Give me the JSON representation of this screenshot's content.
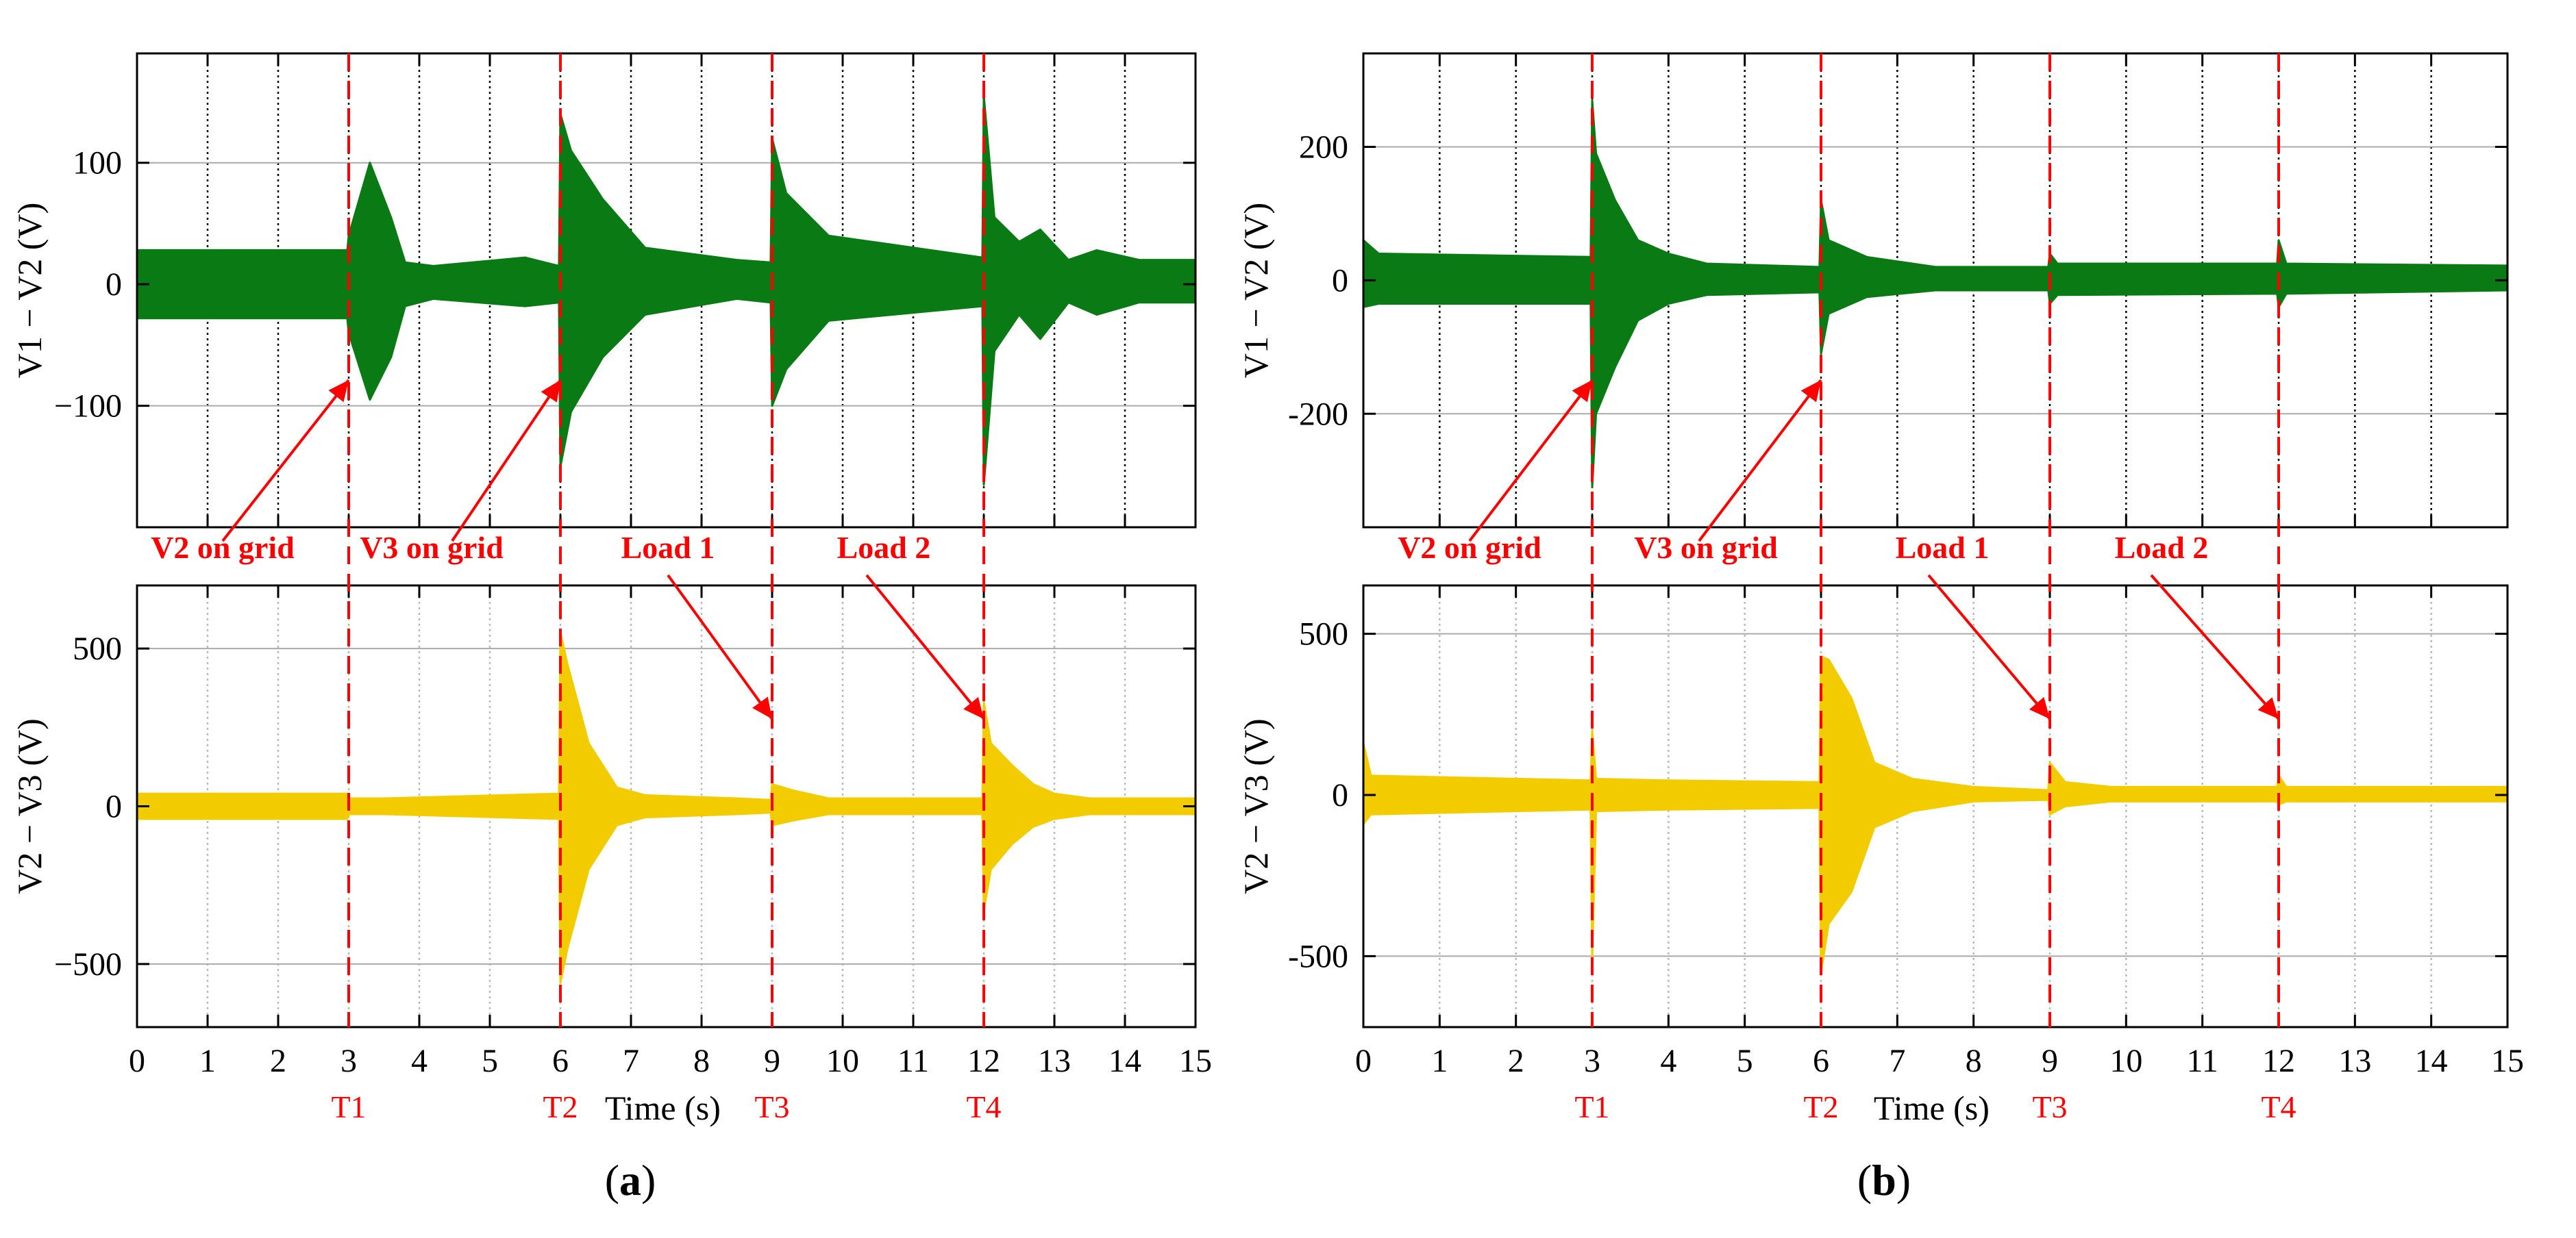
{
  "chart_data": [
    {
      "panel": "(a)",
      "type": "line",
      "x": [
        0,
        1,
        2,
        3,
        4,
        5,
        6,
        7,
        8,
        9,
        10,
        11,
        12,
        13,
        14,
        15
      ],
      "xlabel": "Time (s)",
      "xlim": [
        0,
        15
      ],
      "events": [
        {
          "name": "T1",
          "t": 3
        },
        {
          "name": "T2",
          "t": 6
        },
        {
          "name": "T3",
          "t": 9
        },
        {
          "name": "T4",
          "t": 12
        }
      ],
      "annotations": [
        {
          "text": "V2 on grid",
          "t": 3,
          "plot": "top"
        },
        {
          "text": "V3 on grid",
          "t": 6,
          "plot": "top"
        },
        {
          "text": "Load 1",
          "t": 9,
          "plot": "bottom"
        },
        {
          "text": "Load 2",
          "t": 12,
          "plot": "bottom"
        }
      ],
      "plots": [
        {
          "ylabel": "V1 − V2 (V)",
          "ylim": [
            -200,
            190
          ],
          "yticks": [
            100,
            0,
            -100
          ],
          "ytick_labels": [
            "100",
            "0",
            "−100"
          ],
          "color": "#0a7a14",
          "series": [
            {
              "envelope_time": [
                0,
                2.98,
                3.0,
                3.3,
                3.6,
                3.8,
                4.2,
                5.5,
                5.98,
                6.0,
                6.15,
                6.6,
                7.2,
                8.5,
                8.98,
                9.0,
                9.2,
                9.8,
                11.98,
                12.0,
                12.15,
                12.5,
                12.8,
                13.2,
                13.6,
                14.2,
                15.0
              ],
              "envelope_pos": [
                28,
                28,
                40,
                100,
                55,
                18,
                15,
                22,
                15,
                140,
                110,
                70,
                30,
                20,
                18,
                120,
                75,
                40,
                22,
                155,
                55,
                35,
                45,
                20,
                28,
                20,
                20
              ],
              "envelope_neg": [
                -28,
                -28,
                -40,
                -95,
                -60,
                -18,
                -12,
                -18,
                -15,
                -150,
                -105,
                -60,
                -25,
                -12,
                -15,
                -100,
                -70,
                -30,
                -18,
                -165,
                -55,
                -25,
                -45,
                -15,
                -25,
                -15,
                -15
              ]
            }
          ]
        },
        {
          "ylabel": "V2 − V3 (V)",
          "ylim": [
            -700,
            700
          ],
          "yticks": [
            500,
            0,
            -500
          ],
          "ytick_labels": [
            "500",
            "0",
            "−500"
          ],
          "color": "#f3cc00",
          "series": [
            {
              "envelope_time": [
                0,
                2.98,
                3.0,
                3.5,
                5.98,
                6.0,
                6.1,
                6.4,
                6.8,
                7.2,
                8.5,
                8.98,
                9.0,
                9.3,
                9.8,
                11.98,
                12.0,
                12.1,
                12.4,
                12.7,
                13.0,
                13.5,
                15.0
              ],
              "envelope_pos": [
                40,
                40,
                25,
                25,
                40,
                550,
                450,
                200,
                60,
                35,
                25,
                20,
                70,
                50,
                25,
                25,
                330,
                200,
                130,
                70,
                40,
                25,
                25
              ],
              "envelope_neg": [
                -40,
                -40,
                -25,
                -25,
                -40,
                -560,
                -450,
                -200,
                -60,
                -35,
                -25,
                -20,
                -60,
                -45,
                -25,
                -25,
                -330,
                -200,
                -120,
                -65,
                -40,
                -25,
                -25
              ]
            }
          ]
        }
      ]
    },
    {
      "panel": "(b)",
      "type": "line",
      "x": [
        0,
        1,
        2,
        3,
        4,
        5,
        6,
        7,
        8,
        9,
        10,
        11,
        12,
        13,
        14,
        15
      ],
      "xlabel": "Time (s)",
      "xlim": [
        0,
        15
      ],
      "events": [
        {
          "name": "T1",
          "t": 3
        },
        {
          "name": "T2",
          "t": 6
        },
        {
          "name": "T3",
          "t": 9
        },
        {
          "name": "T4",
          "t": 12
        }
      ],
      "annotations": [
        {
          "text": "V2 on grid",
          "t": 3,
          "plot": "top"
        },
        {
          "text": "V3 on grid",
          "t": 6,
          "plot": "top"
        },
        {
          "text": "Load 1",
          "t": 9,
          "plot": "bottom"
        },
        {
          "text": "Load 2",
          "t": 12,
          "plot": "bottom"
        }
      ],
      "plots": [
        {
          "ylabel": "V1 − V2 (V)",
          "ylim": [
            -370,
            340
          ],
          "yticks": [
            200,
            0,
            -200
          ],
          "ytick_labels": [
            "200",
            "0",
            "-200"
          ],
          "color": "#0a7a14",
          "series": [
            {
              "envelope_time": [
                0,
                0.2,
                2.98,
                3.0,
                3.05,
                3.3,
                3.6,
                4.0,
                4.5,
                5.98,
                6.0,
                6.1,
                6.6,
                7.5,
                8.98,
                9.0,
                9.1,
                11.98,
                12.0,
                12.1,
                15.0
              ],
              "envelope_pos": [
                60,
                40,
                35,
                270,
                190,
                120,
                60,
                40,
                25,
                20,
                120,
                60,
                35,
                20,
                20,
                40,
                25,
                25,
                60,
                25,
                22
              ],
              "envelope_neg": [
                -40,
                -35,
                -35,
                -310,
                -200,
                -130,
                -60,
                -35,
                -22,
                -18,
                -110,
                -50,
                -25,
                -15,
                -15,
                -35,
                -22,
                -20,
                -40,
                -20,
                -15
              ]
            }
          ]
        },
        {
          "ylabel": "V2 − V3 (V)",
          "ylim": [
            -720,
            650
          ],
          "yticks": [
            500,
            0,
            -500
          ],
          "ytick_labels": [
            "500",
            "0",
            "-500"
          ],
          "color": "#f3cc00",
          "series": [
            {
              "envelope_time": [
                0,
                0.1,
                2.98,
                3.0,
                3.05,
                4.0,
                5.98,
                6.0,
                6.1,
                6.4,
                6.7,
                7.2,
                8.0,
                8.98,
                9.0,
                9.2,
                9.8,
                11.98,
                12.0,
                12.1,
                15.0
              ],
              "envelope_pos": [
                160,
                60,
                45,
                200,
                50,
                45,
                40,
                430,
                420,
                300,
                100,
                50,
                25,
                15,
                100,
                40,
                25,
                25,
                60,
                25,
                25
              ],
              "envelope_neg": [
                -90,
                -60,
                -45,
                -510,
                -50,
                -45,
                -40,
                -550,
                -400,
                -300,
                -100,
                -50,
                -20,
                -15,
                -60,
                -35,
                -20,
                -20,
                -30,
                -20,
                -20
              ]
            }
          ]
        }
      ]
    }
  ],
  "captions": {
    "a": "(a)",
    "b": "(b)"
  }
}
